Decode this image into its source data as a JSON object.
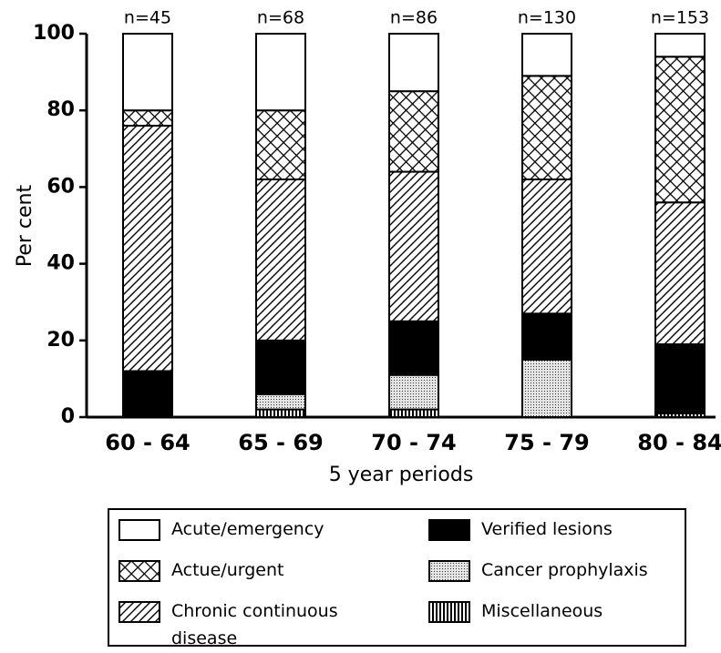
{
  "chart_data": {
    "type": "stacked_bar",
    "ylabel": "Per cent",
    "xlabel": "5 year periods",
    "categories": [
      "60 - 64",
      "65 - 69",
      "70 - 74",
      "75 - 79",
      "80 - 84"
    ],
    "bar_labels": [
      "n=45",
      "n=68",
      "n=86",
      "n=130",
      "n=153"
    ],
    "ylim": [
      0,
      100
    ],
    "yticks": [
      0,
      20,
      40,
      60,
      80,
      100
    ],
    "series": [
      {
        "name": "Miscellaneous",
        "pattern": "vertical",
        "values": [
          0,
          2,
          2,
          0,
          1
        ]
      },
      {
        "name": "Cancer prophylaxis",
        "pattern": "dots",
        "values": [
          0,
          4,
          9,
          15,
          0
        ]
      },
      {
        "name": "Verified lesions",
        "pattern": "solid",
        "values": [
          12,
          14,
          14,
          12,
          18
        ]
      },
      {
        "name": "Chronic continuous disease",
        "pattern": "diagonal",
        "values": [
          64,
          42,
          39,
          35,
          37
        ]
      },
      {
        "name": "Actue/urgent",
        "pattern": "crosshatch",
        "values": [
          4,
          18,
          21,
          27,
          38
        ]
      },
      {
        "name": "Acute/emergency",
        "pattern": "blank",
        "values": [
          20,
          20,
          15,
          11,
          6
        ]
      }
    ]
  }
}
